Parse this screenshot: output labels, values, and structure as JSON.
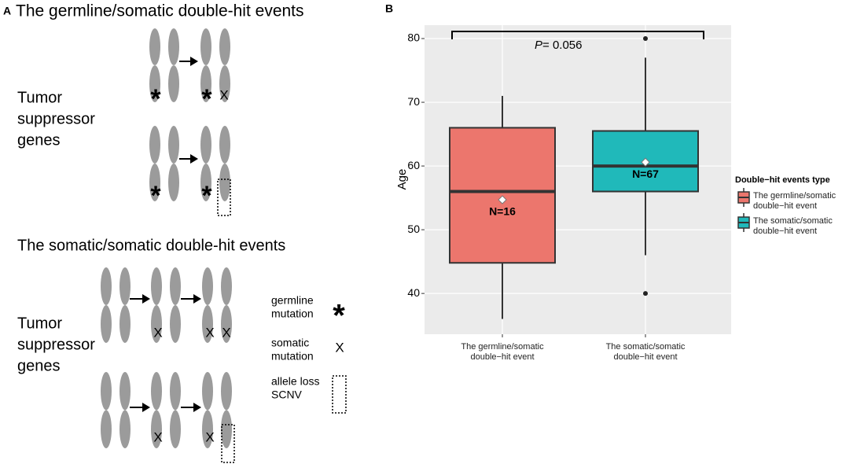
{
  "panel_a": {
    "letter": "A",
    "section_1_title": "The germline/somatic double-hit events",
    "section_2_title": "The somatic/somatic double-hit events",
    "gene_label_lines": [
      "Tumor",
      "suppressor",
      "genes"
    ],
    "symbols": {
      "germline": "*",
      "somatic": "X"
    },
    "key": [
      {
        "lines": [
          "germline",
          "mutation"
        ]
      },
      {
        "lines": [
          "somatic",
          "mutation"
        ]
      },
      {
        "lines": [
          "allele loss",
          "SCNV"
        ]
      }
    ]
  },
  "chart_data": {
    "type": "box",
    "panel_letter": "B",
    "y_label": "Age",
    "categories": [
      "The germline/somatic double−hit event",
      "The somatic/somatic double−hit event"
    ],
    "colors": [
      "#EC766D",
      "#20B9BA"
    ],
    "boxes": [
      {
        "whisker_low": 36,
        "q1": 44.8,
        "median": 56,
        "q3": 66,
        "whisker_high": 71,
        "mean": 54.7,
        "outliers": [],
        "n_label": "N=16"
      },
      {
        "whisker_low": 46,
        "q1": 56,
        "median": 60,
        "q3": 65.5,
        "whisker_high": 77,
        "mean": 60.6,
        "outliers": [
          80,
          40
        ],
        "n_label": "N=67"
      }
    ],
    "annotation": {
      "p_symbol": "P",
      "p_text": "= 0.056"
    },
    "legend": {
      "title": "Double−hit events type",
      "position": "right"
    },
    "ylim": [
      33.6,
      82.1
    ],
    "yticks": [
      40,
      50,
      60,
      70,
      80
    ],
    "grid": true
  }
}
